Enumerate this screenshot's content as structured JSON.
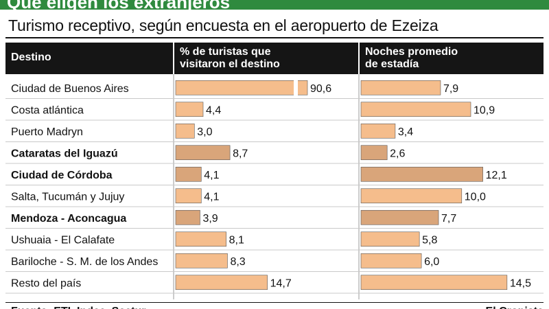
{
  "header": {
    "headline": "Qué eligen los extranjeros",
    "subtitle": "Turismo receptivo, según encuesta en el aeropuerto de Ezeiza"
  },
  "columns": {
    "destino": "Destino",
    "visit_line1": "% de turistas que",
    "visit_line2": "visitaron el destino",
    "nights_line1": "Noches promedio",
    "nights_line2": "de estadía"
  },
  "colors": {
    "bar_light": "#f5bd8c",
    "bar_dark": "#d9a57a",
    "header_bg": "#151515",
    "headline_bg": "#2f8a3e"
  },
  "chart_data": {
    "type": "table",
    "title": "Turismo receptivo, según encuesta en el aeropuerto de Ezeiza",
    "categories": [
      "Ciudad de Buenos Aires",
      "Costa atlántica",
      "Puerto Madryn",
      "Cataratas del Iguazú",
      "Ciudad de Córdoba",
      "Salta, Tucumán y Jujuy",
      "Mendoza - Aconcagua",
      "Ushuaia - El Calafate",
      "Bariloche - S. M. de los Andes",
      "Resto del país"
    ],
    "highlighted": [
      false,
      false,
      false,
      true,
      true,
      false,
      true,
      false,
      false,
      false
    ],
    "series": [
      {
        "name": "% de turistas que visitaron el destino",
        "values": [
          90.6,
          4.4,
          3.0,
          8.7,
          4.1,
          4.1,
          3.9,
          8.1,
          8.3,
          14.7
        ],
        "labels": [
          "90,6",
          "4,4",
          "3,0",
          "8,7",
          "4,1",
          "4,1",
          "3,9",
          "8,1",
          "8,3",
          "14,7"
        ],
        "broken_scale": [
          true,
          false,
          false,
          false,
          false,
          false,
          false,
          false,
          false,
          false
        ]
      },
      {
        "name": "Noches promedio de estadía",
        "values": [
          7.9,
          10.9,
          3.4,
          2.6,
          12.1,
          10.0,
          7.7,
          5.8,
          6.0,
          14.5
        ],
        "labels": [
          "7,9",
          "10,9",
          "3,4",
          "2,6",
          "12,1",
          "10,0",
          "7,7",
          "5,8",
          "6,0",
          "14,5"
        ]
      }
    ]
  },
  "footer": {
    "source": "Fuente: ETI, Indec, Sectur",
    "credit": "El Cronista"
  }
}
